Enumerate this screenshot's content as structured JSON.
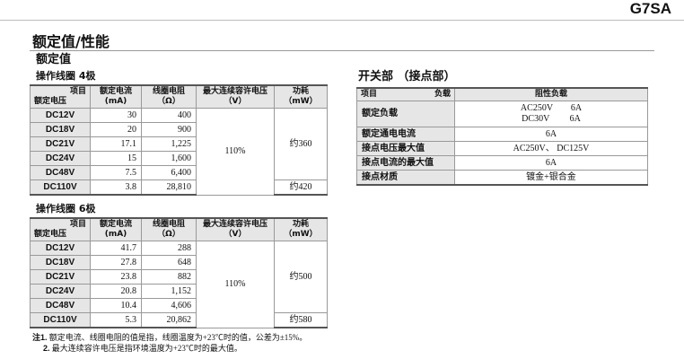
{
  "model": "G7SA",
  "title": "额定值/性能",
  "section": "额定值",
  "coil_headers": {
    "item": "项目",
    "rated_voltage": "额定电压",
    "current": "额定电流",
    "current_unit": "(mA)",
    "resistance": "线圈电阻",
    "resistance_unit": "（Ω）",
    "max_voltage": "最大连续容许电压",
    "max_voltage_unit": "（V）",
    "power": "功耗",
    "power_unit": "（mW）"
  },
  "coil4": {
    "title": "操作线圈 4极",
    "rows": [
      [
        "DC12V",
        "30",
        "400"
      ],
      [
        "DC18V",
        "20",
        "900"
      ],
      [
        "DC21V",
        "17.1",
        "1,225"
      ],
      [
        "DC24V",
        "15",
        "1,600"
      ],
      [
        "DC48V",
        "7.5",
        "6,400"
      ],
      [
        "DC110V",
        "3.8",
        "28,810"
      ]
    ],
    "max_voltage": "110%",
    "power_a": "约360",
    "power_b": "约420"
  },
  "coil6": {
    "title": "操作线圈 6极",
    "rows": [
      [
        "DC12V",
        "41.7",
        "288"
      ],
      [
        "DC18V",
        "27.8",
        "648"
      ],
      [
        "DC21V",
        "23.8",
        "882"
      ],
      [
        "DC24V",
        "20.8",
        "1,152"
      ],
      [
        "DC48V",
        "10.4",
        "4,606"
      ],
      [
        "DC110V",
        "5.3",
        "20,862"
      ]
    ],
    "max_voltage": "110%",
    "power_a": "约500",
    "power_b": "约580"
  },
  "switch": {
    "title": "开关部 （接点部）",
    "h_item": "项目",
    "h_load": "负载",
    "h_res": "阻性负载",
    "rows": [
      {
        "label": "额定负载",
        "line1": "AC250V　　6A",
        "line2": "DC30V　　 6A"
      },
      {
        "label": "额定通电电流",
        "value": "6A"
      },
      {
        "label": "接点电压最大值",
        "value": "AC250V、 DC125V"
      },
      {
        "label": "接点电流的最大值",
        "value": "6A"
      },
      {
        "label": "接点材质",
        "value": "镀金+银合金"
      }
    ]
  },
  "notes": [
    {
      "num": "注1.",
      "text": "额定电流、线圈电阻的值是指，线圈温度为+23℃时的值，公差为±15%。"
    },
    {
      "num": "2.",
      "text": "最大连续容许电压是指环境温度为+23℃时的最大值。"
    }
  ]
}
